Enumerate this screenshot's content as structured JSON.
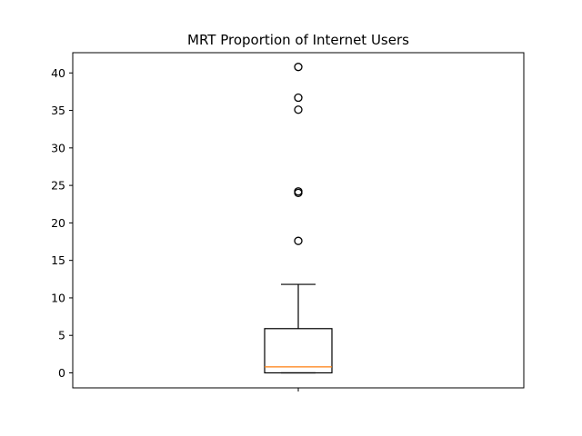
{
  "chart_data": {
    "type": "box",
    "title": "MRT Proportion of Internet Users",
    "xlabel": "",
    "ylabel": "",
    "x_tick_labels": [
      ""
    ],
    "ylim": [
      -2,
      42.7
    ],
    "yticks": [
      0,
      5,
      10,
      15,
      20,
      25,
      30,
      35,
      40
    ],
    "grid": false,
    "box": {
      "whisker_low": 0.0,
      "q1": 0.0,
      "median": 0.8,
      "q3": 5.9,
      "whisker_high": 11.8,
      "outliers": [
        17.6,
        24.0,
        24.2,
        35.1,
        36.7,
        40.8
      ]
    },
    "colors": {
      "box": "#000000",
      "median": "#ff7f0e",
      "outlier_edge": "#000000"
    }
  }
}
